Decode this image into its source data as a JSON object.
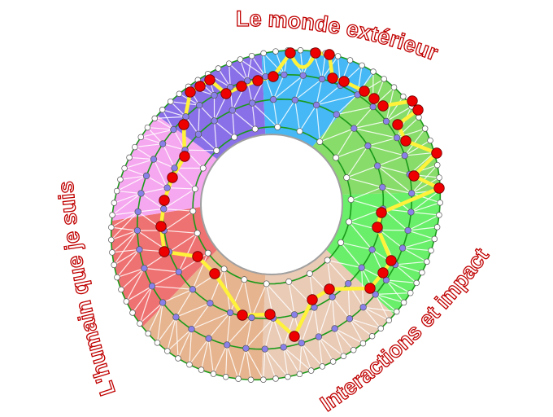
{
  "labels": {
    "top": "Le monde extérieur",
    "left": "L'humain que je suis",
    "right": "Interactions et impact"
  },
  "colors": {
    "label_outline": "#c00000",
    "ring_line": "#1a9a1a",
    "path": "#fff23a",
    "path_node": "#ee0000",
    "inner_node": "#8a80ea",
    "outer_node": "#ffffff",
    "sectors": [
      "#8a70e8",
      "#45b8f5",
      "#88dc6a",
      "#6aef6a",
      "#e9cbb6",
      "#e6b48f",
      "#ef7272",
      "#f5a8ef"
    ]
  }
}
